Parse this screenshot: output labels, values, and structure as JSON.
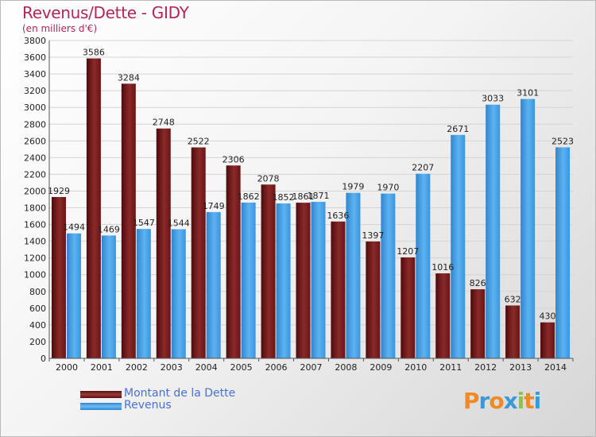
{
  "header": {
    "title": "Revenus/Dette - GIDY",
    "subtitle": "(en milliers d'€)"
  },
  "legend": {
    "items": [
      {
        "label": "Montant de la Dette",
        "color": "#7a1d1d"
      },
      {
        "label": "Revenus",
        "color": "#4aa3e6"
      }
    ]
  },
  "logo": {
    "letters": [
      "P",
      "r",
      "o",
      "x",
      "i",
      "t",
      "i"
    ],
    "colors": [
      "#f08a24",
      "#3a9ad9",
      "#f08a24",
      "#3a9ad9",
      "#8cc63f",
      "#f08a24",
      "#3a9ad9"
    ]
  },
  "chart_data": {
    "type": "bar",
    "categories": [
      "2000",
      "2001",
      "2002",
      "2003",
      "2004",
      "2005",
      "2006",
      "2007",
      "2008",
      "2009",
      "2010",
      "2011",
      "2012",
      "2013",
      "2014"
    ],
    "series": [
      {
        "name": "Montant de la Dette",
        "color": "#7a1d1d",
        "values": [
          1929,
          3586,
          3284,
          2748,
          2522,
          2306,
          2078,
          1861,
          1636,
          1397,
          1207,
          1016,
          826,
          632,
          430
        ],
        "labels": [
          "1929",
          "3586",
          "3284",
          "2748",
          "2522",
          "2306",
          "2078",
          "1861",
          "1636",
          "1397",
          "1207",
          "1016",
          "826",
          "632",
          "430"
        ]
      },
      {
        "name": "Revenus",
        "color": "#4aa3e6",
        "values": [
          1494,
          1469,
          1547,
          1544,
          1749,
          1862,
          1852,
          1871,
          1979,
          1970,
          2207,
          2671,
          3033,
          3101,
          2523
        ],
        "labels": [
          "1494",
          "1469",
          "1547",
          "1544",
          "1749",
          "1862",
          "1852",
          "1871",
          "1979",
          "1970",
          "2207",
          "2671",
          "3033",
          "3101",
          "2523"
        ]
      }
    ],
    "ylim": [
      0,
      3800
    ],
    "yticks": [
      0,
      200,
      400,
      600,
      800,
      1000,
      1200,
      1400,
      1600,
      1800,
      2000,
      2200,
      2400,
      2600,
      2800,
      3000,
      3200,
      3400,
      3600,
      3800
    ],
    "grid": true
  }
}
